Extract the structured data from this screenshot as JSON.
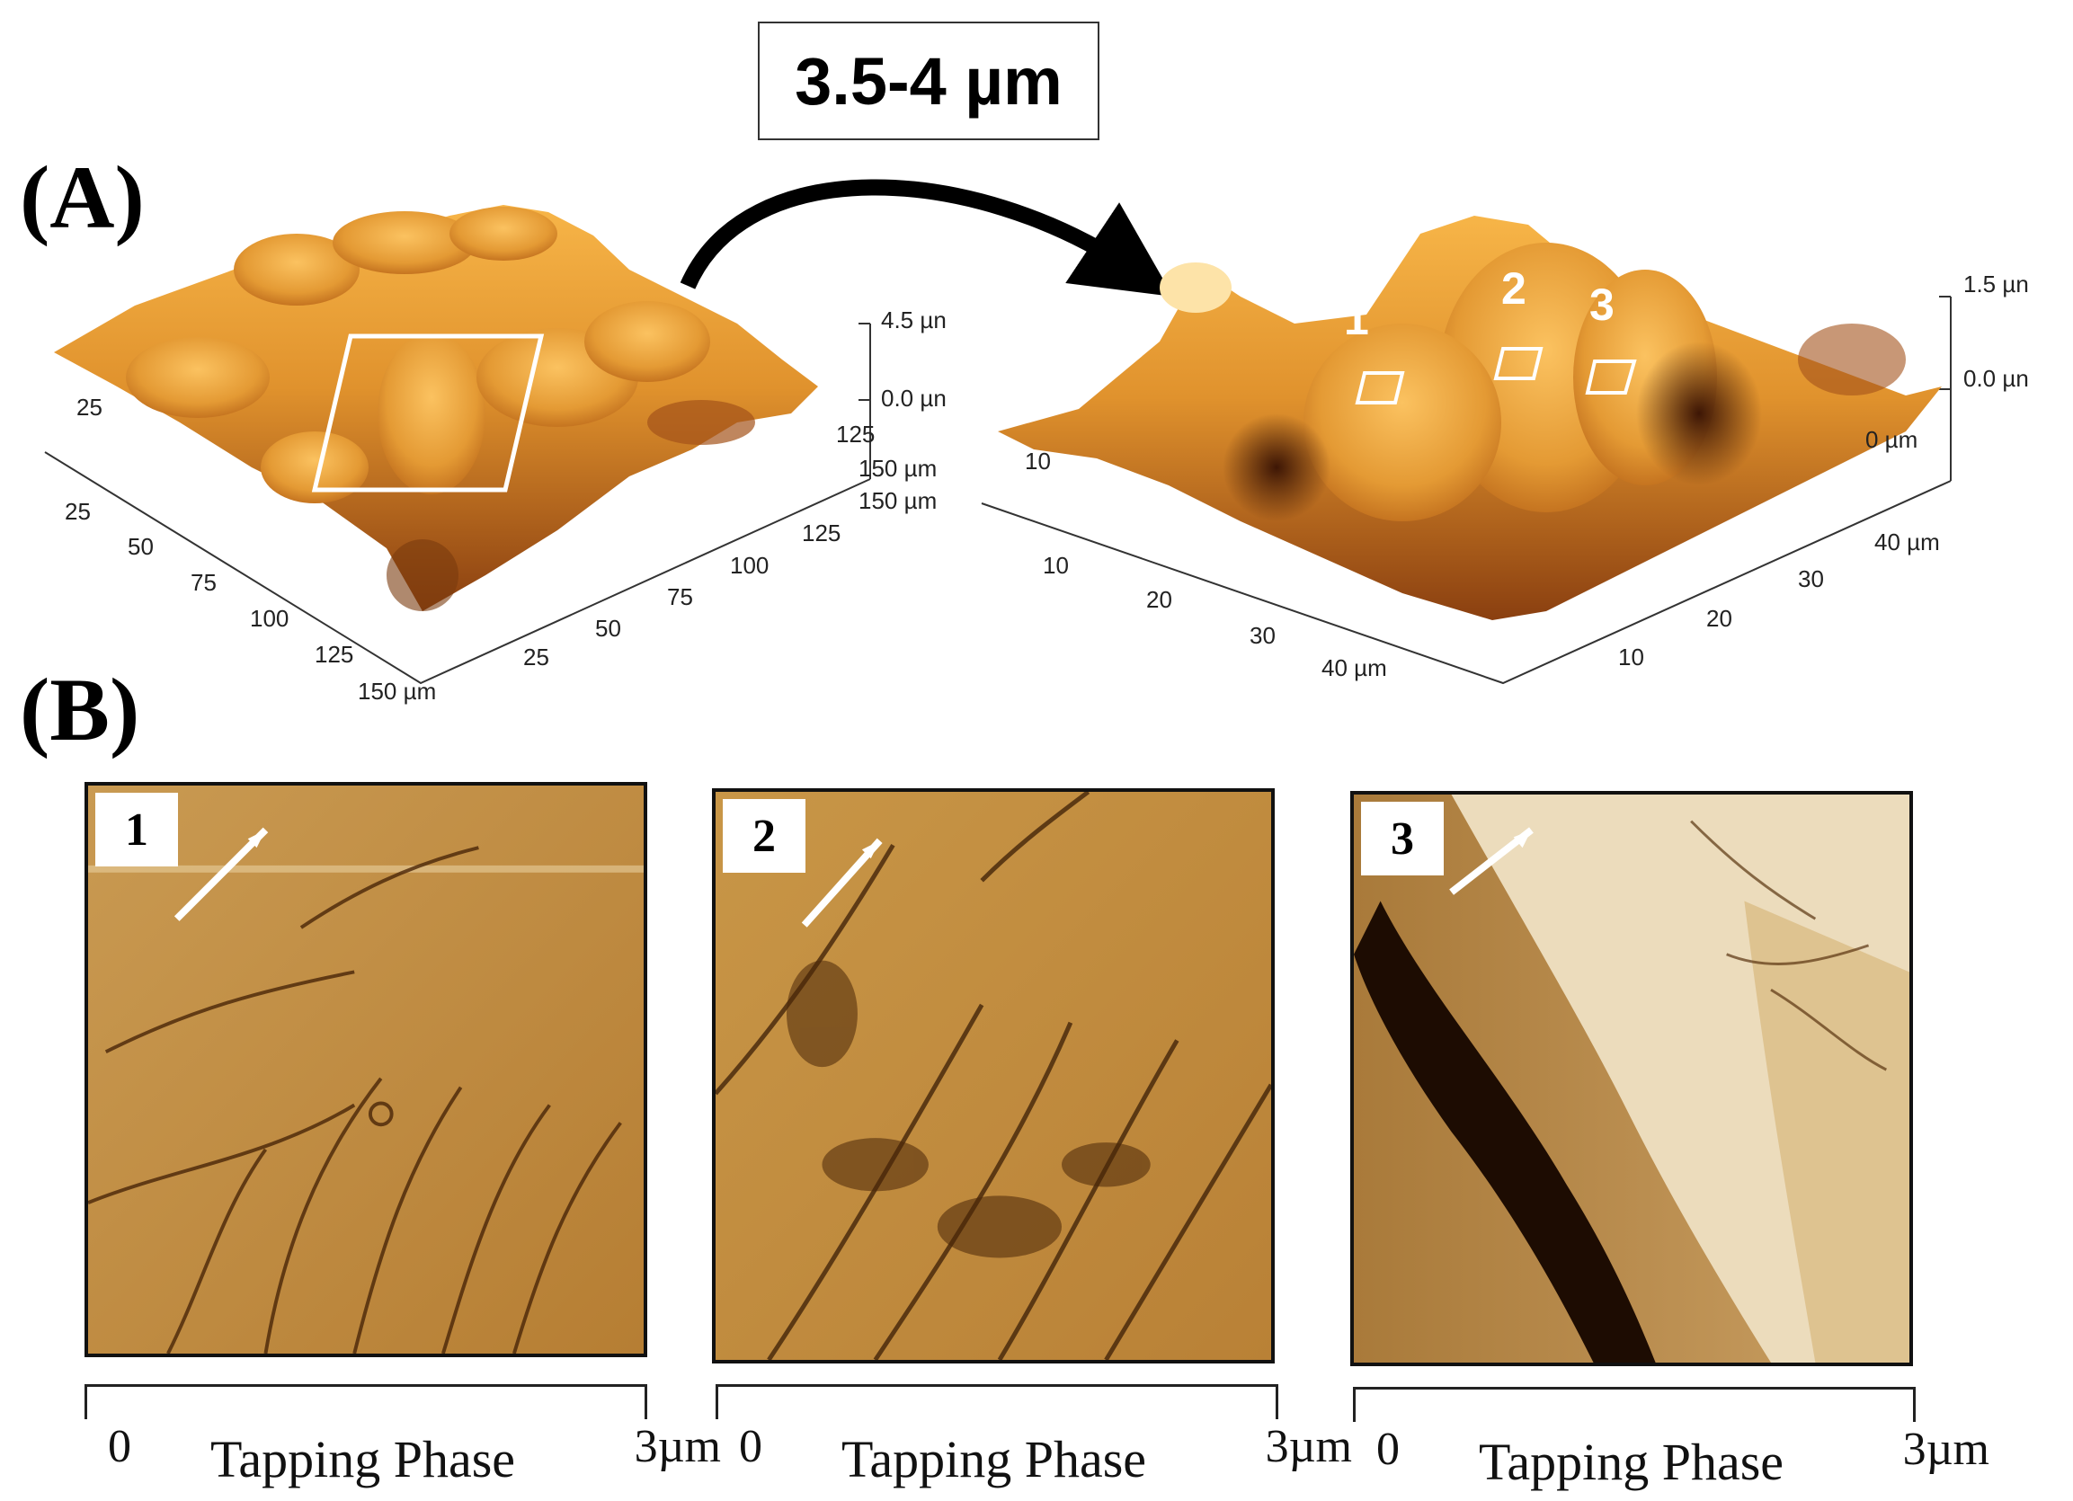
{
  "panel_labels": {
    "a": "(A)",
    "b": "(B)"
  },
  "zoom_range_label": "3.5-4 µm",
  "left_surface": {
    "z_ticks": [
      "4.5 µn",
      "0.0 µn"
    ],
    "front_axis_ticks": [
      "25",
      "50",
      "75",
      "100",
      "125",
      "150 µm"
    ],
    "right_axis_ticks": [
      "25",
      "50",
      "75",
      "100",
      "125",
      "150 µm"
    ],
    "back_ticks": [
      "25",
      "125",
      "150 µm"
    ]
  },
  "right_surface": {
    "z_ticks": [
      "1.5 µn",
      "0.0 µn"
    ],
    "front_axis_ticks": [
      "10",
      "20",
      "30",
      "40 µm"
    ],
    "right_axis_ticks": [
      "10",
      "20",
      "30",
      "40 µm"
    ],
    "back_ticks": [
      "10",
      "0 µm"
    ],
    "regions": [
      "1",
      "2",
      "3"
    ]
  },
  "phase_images": [
    {
      "badge": "1",
      "scale_zero": "0",
      "scale_title": "Tapping Phase",
      "scale_end": "3µm"
    },
    {
      "badge": "2",
      "scale_zero": "0",
      "scale_title": "Tapping Phase",
      "scale_end": "3µm"
    },
    {
      "badge": "3",
      "scale_zero": "0",
      "scale_title": "Tapping Phase",
      "scale_end": "3µm"
    }
  ],
  "colors": {
    "surface_light": "#f6b043",
    "surface_mid": "#d98a2a",
    "surface_dark": "#7a3a0e",
    "phase_base": "#c8923e"
  }
}
